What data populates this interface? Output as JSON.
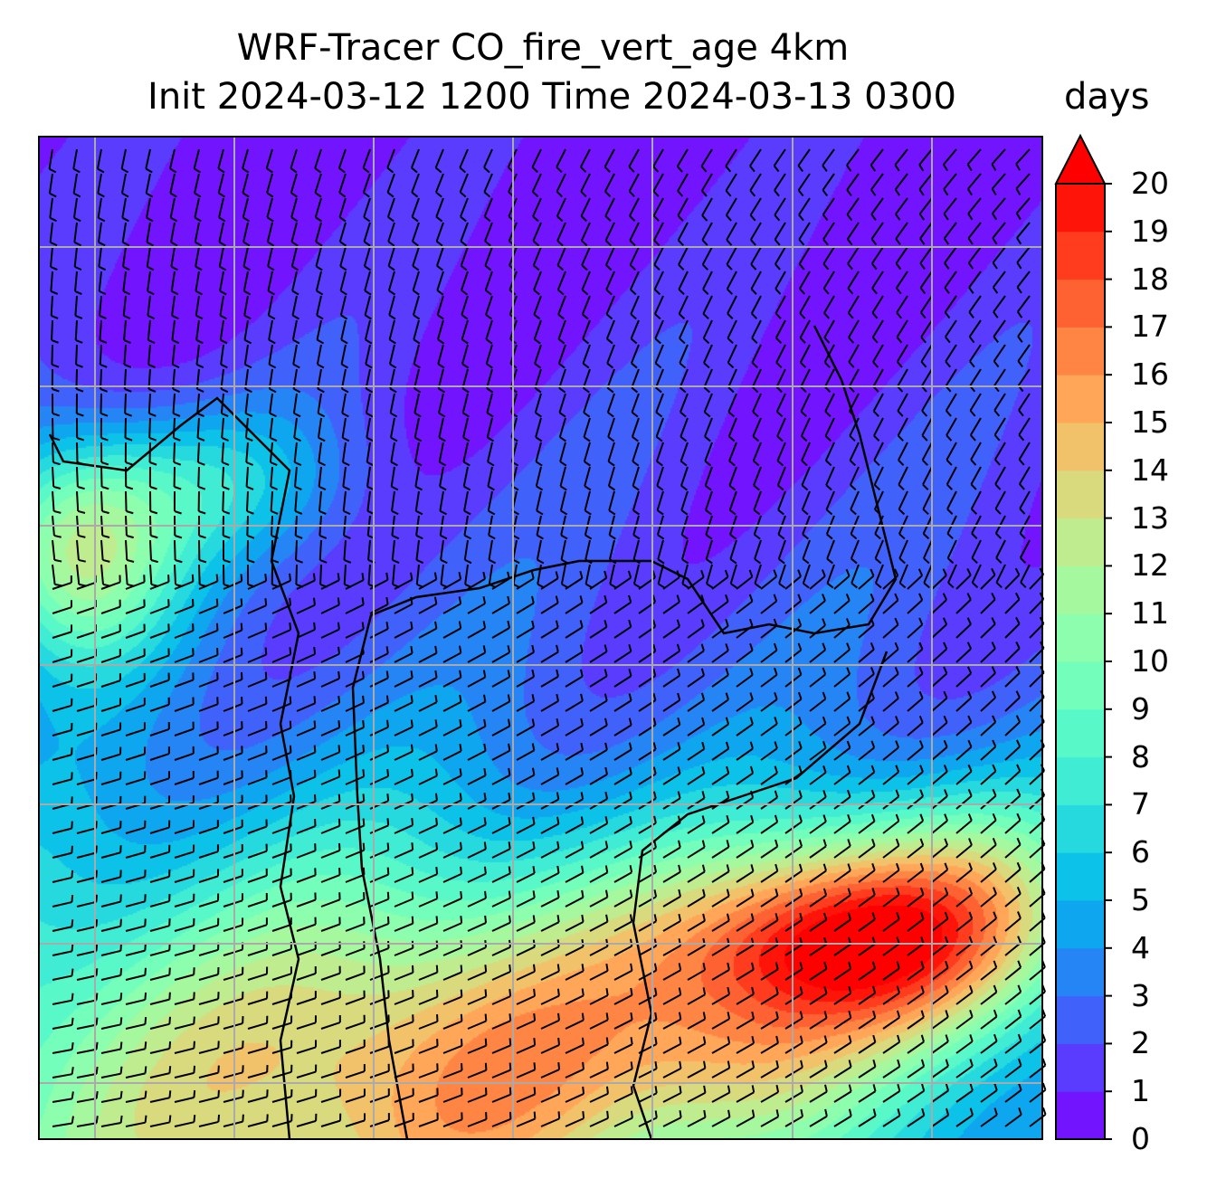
{
  "title": {
    "line1": "WRF-Tracer CO_fire_vert_age 4km",
    "line2": "Init 2024-03-12 1200 Time 2024-03-13 0300"
  },
  "chart_data": {
    "type": "heatmap",
    "title": "WRF-Tracer CO_fire_vert_age 4km / Init 2024-03-12 1200 Time 2024-03-13 0300",
    "variable": "CO_fire_vert_age",
    "colorbar": {
      "unit": "days",
      "levels": [
        0,
        1,
        2,
        3,
        4,
        5,
        6,
        7,
        8,
        9,
        10,
        11,
        12,
        13,
        14,
        15,
        16,
        17,
        18,
        19,
        20
      ],
      "tick_labels": [
        "0",
        "1",
        "2",
        "3",
        "4",
        "5",
        "6",
        "7",
        "8",
        "9",
        "10",
        "11",
        "12",
        "13",
        "14",
        "15",
        "16",
        "17",
        "18",
        "19",
        "20"
      ],
      "extend": "max",
      "colormap": "rainbow"
    },
    "overlays": [
      "wind barbs",
      "coastlines/borders",
      "gridlines",
      "circle markers (calm)"
    ],
    "grid": true
  }
}
